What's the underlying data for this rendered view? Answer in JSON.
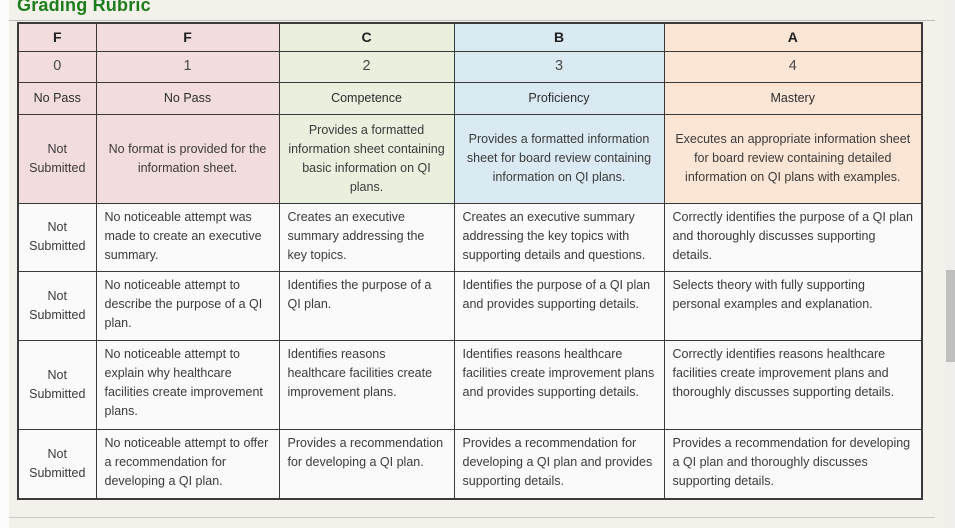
{
  "page": {
    "title": "Grading Rubric",
    "title_color": "#1b7d1b",
    "background_color": "#f3f1ea"
  },
  "rubric": {
    "grade_columns": [
      {
        "letter": "F",
        "points": "0",
        "level": "No Pass",
        "color": "#f2dcdd"
      },
      {
        "letter": "F",
        "points": "1",
        "level": "No Pass",
        "color": "#f2dcdd"
      },
      {
        "letter": "C",
        "points": "2",
        "level": "Competence",
        "color": "#e9f0dd"
      },
      {
        "letter": "B",
        "points": "3",
        "level": "Proficiency",
        "color": "#d9eaf2"
      },
      {
        "letter": "A",
        "points": "4",
        "level": "Mastery",
        "color": "#fbe5d5"
      }
    ],
    "body_cell_color": "#fafafa",
    "criteria_rows": [
      {
        "highlighted": true,
        "cells": [
          "Not Submitted",
          "No format is provided for the information sheet.",
          "Provides a formatted information sheet containing basic information on QI plans.",
          "Provides a formatted information sheet for board review containing information on QI plans.",
          "Executes an appropriate information sheet for board review containing detailed information on QI plans with examples."
        ]
      },
      {
        "highlighted": false,
        "cells": [
          "Not Submitted",
          "No noticeable attempt was made to create an executive summary.",
          "Creates an executive summary addressing the key topics.",
          "Creates an executive summary addressing the key topics with supporting details and questions.",
          "Correctly identifies the purpose of a QI plan and thoroughly discusses supporting details."
        ]
      },
      {
        "highlighted": false,
        "cells": [
          "Not Submitted",
          "No noticeable attempt to describe the purpose of a QI plan.",
          "Identifies the purpose of a QI plan.",
          "Identifies the purpose of a QI plan and provides supporting details.",
          "Selects theory with fully supporting personal examples and explanation."
        ]
      },
      {
        "highlighted": false,
        "cells": [
          "Not Submitted",
          "No noticeable attempt to explain why healthcare facilities create improvement plans.",
          "Identifies reasons healthcare facilities create improvement plans.",
          "Identifies reasons healthcare facilities create improvement plans and provides supporting details.",
          "Correctly identifies reasons healthcare facilities create improvement plans and thoroughly discusses supporting details."
        ]
      },
      {
        "highlighted": false,
        "cells": [
          "Not Submitted",
          "No noticeable attempt to offer a recommendation for developing a QI plan.",
          "Provides a recommendation for developing a QI plan.",
          "Provides a recommendation for developing a QI plan and provides supporting details.",
          "Provides a recommendation for developing a QI plan and thoroughly discusses supporting details."
        ]
      }
    ]
  }
}
